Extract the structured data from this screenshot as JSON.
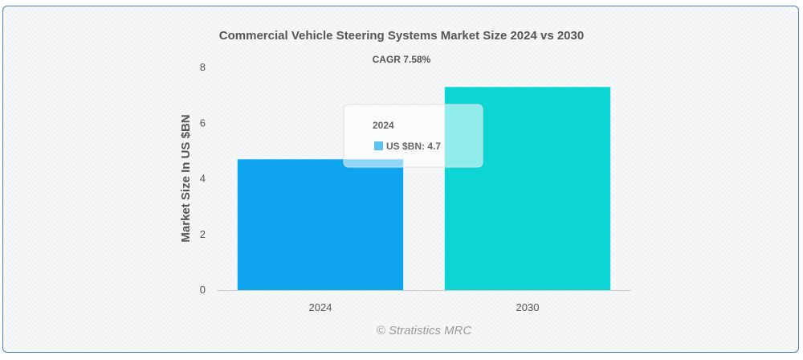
{
  "chart_data": {
    "type": "bar",
    "title": "Commercial Vehicle Steering Systems Market Size 2024 vs 2030",
    "subtitle": "CAGR 7.58%",
    "xlabel": "",
    "ylabel": "Market Size In US $BN",
    "categories": [
      "2024",
      "2030"
    ],
    "series": [
      {
        "name": "US $BN",
        "values": [
          4.7,
          7.3
        ]
      }
    ],
    "bar_colors": [
      "#0ea5ee",
      "#0dd5d4"
    ],
    "ylim": [
      0,
      8
    ],
    "yticks": [
      0,
      2,
      4,
      6,
      8
    ],
    "grid": false,
    "credit": "© Stratistics MRC",
    "tooltip": {
      "title": "2024",
      "label": "US $BN: 4.7",
      "swatch_color": "#5cc2f2"
    }
  }
}
